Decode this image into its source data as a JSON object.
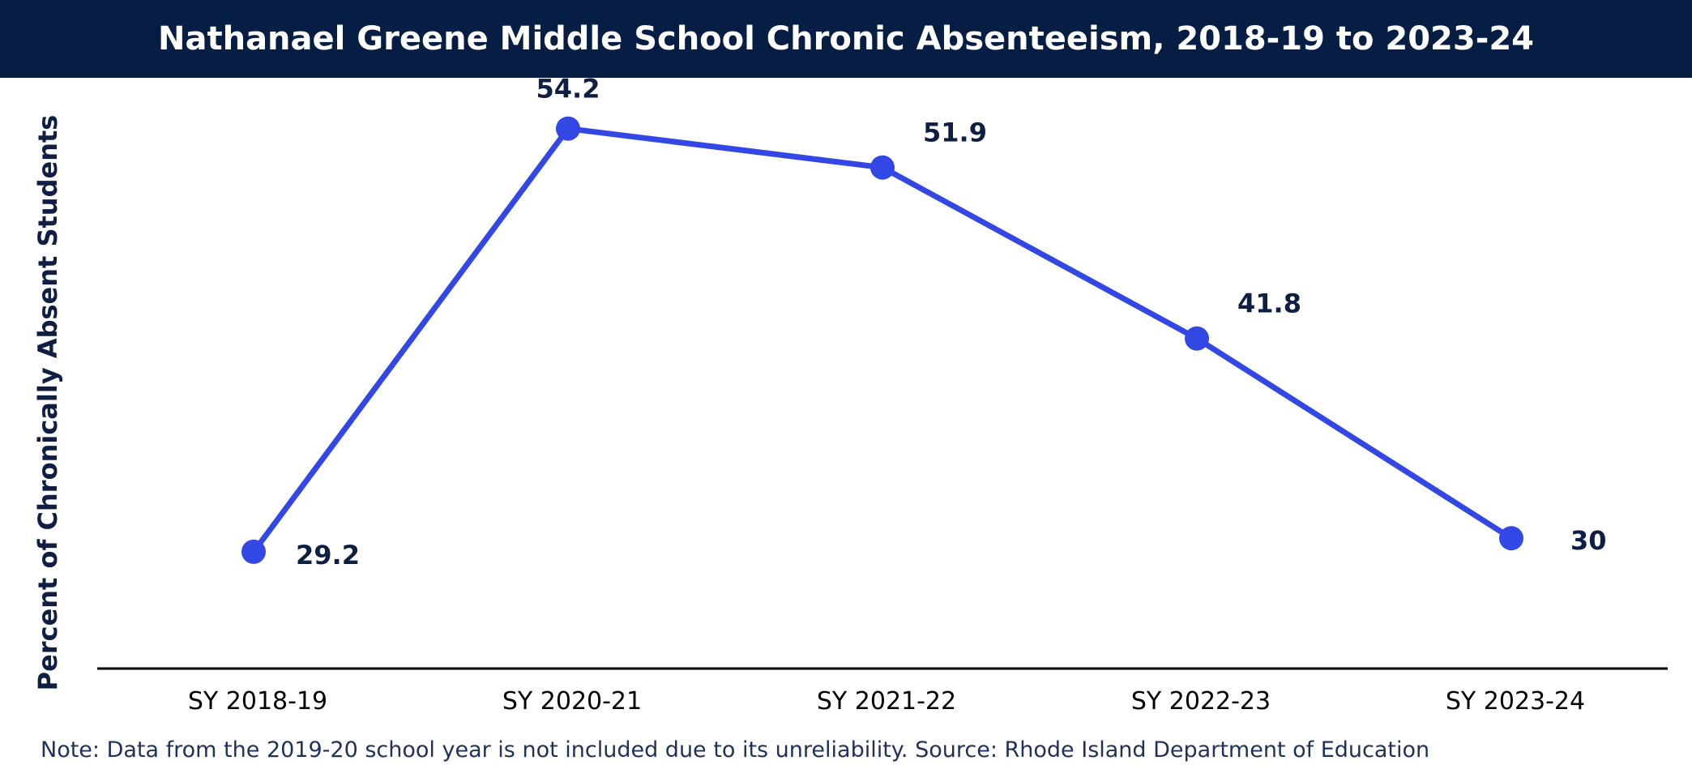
{
  "chart_data": {
    "type": "line",
    "title": "Nathanael Greene Middle School Chronic Absenteeism, 2018-19 to 2023-24",
    "xlabel": "",
    "ylabel": "Percent of Chronically Absent Students",
    "categories": [
      "SY 2018-19",
      "SY 2020-21",
      "SY 2021-22",
      "SY 2022-23",
      "SY 2023-24"
    ],
    "series": [
      {
        "values": [
          29.2,
          54.2,
          51.9,
          41.8,
          30
        ],
        "data_labels": [
          "29.2",
          "54.2",
          "51.9",
          "41.8",
          "30"
        ]
      }
    ],
    "ylim": [
      22.3,
      57.2
    ],
    "grid": false,
    "legend": "none"
  },
  "colors": {
    "header_bg": "#061d44",
    "line": "#3347e5",
    "text_dark": "#0f1f43",
    "axis": "#000000"
  },
  "note": "Note: Data from the 2019-20 school year is not included due to its unreliability. Source: Rhode Island Department of Education"
}
